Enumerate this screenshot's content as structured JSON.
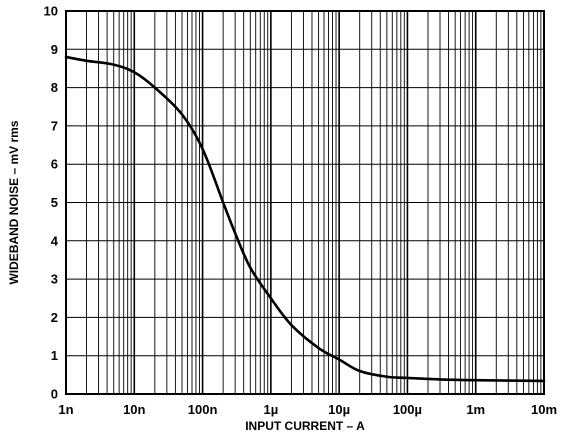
{
  "chart_data": {
    "type": "line",
    "title": "",
    "xlabel": "INPUT CURRENT – A",
    "ylabel": "WIDEBAND NOISE – mV rms",
    "x_scale": "log",
    "y_scale": "linear",
    "xlim": [
      1e-09,
      0.01
    ],
    "ylim": [
      0,
      10
    ],
    "grid": true,
    "x_ticks": [
      {
        "value": 1e-09,
        "label": "1n"
      },
      {
        "value": 1e-08,
        "label": "10n"
      },
      {
        "value": 1e-07,
        "label": "100n"
      },
      {
        "value": 1e-06,
        "label": "1µ"
      },
      {
        "value": 1e-05,
        "label": "10µ"
      },
      {
        "value": 0.0001,
        "label": "100µ"
      },
      {
        "value": 0.001,
        "label": "1m"
      },
      {
        "value": 0.01,
        "label": "10m"
      }
    ],
    "y_ticks": [
      {
        "value": 0,
        "label": "0"
      },
      {
        "value": 1,
        "label": "1"
      },
      {
        "value": 2,
        "label": "2"
      },
      {
        "value": 3,
        "label": "3"
      },
      {
        "value": 4,
        "label": "4"
      },
      {
        "value": 5,
        "label": "5"
      },
      {
        "value": 6,
        "label": "6"
      },
      {
        "value": 7,
        "label": "7"
      },
      {
        "value": 8,
        "label": "8"
      },
      {
        "value": 9,
        "label": "9"
      },
      {
        "value": 10,
        "label": "10"
      }
    ],
    "series": [
      {
        "color": "#000000",
        "x": [
          1e-09,
          2e-09,
          5e-09,
          1e-08,
          2e-08,
          5e-08,
          1e-07,
          2e-07,
          3e-07,
          5e-07,
          1e-06,
          2e-06,
          5e-06,
          1e-05,
          2e-05,
          5e-05,
          0.0001,
          0.0003,
          0.001,
          0.01
        ],
        "y": [
          8.8,
          8.7,
          8.6,
          8.4,
          8.0,
          7.3,
          6.4,
          5.0,
          4.2,
          3.3,
          2.5,
          1.8,
          1.2,
          0.9,
          0.6,
          0.45,
          0.42,
          0.38,
          0.36,
          0.34
        ]
      }
    ]
  }
}
